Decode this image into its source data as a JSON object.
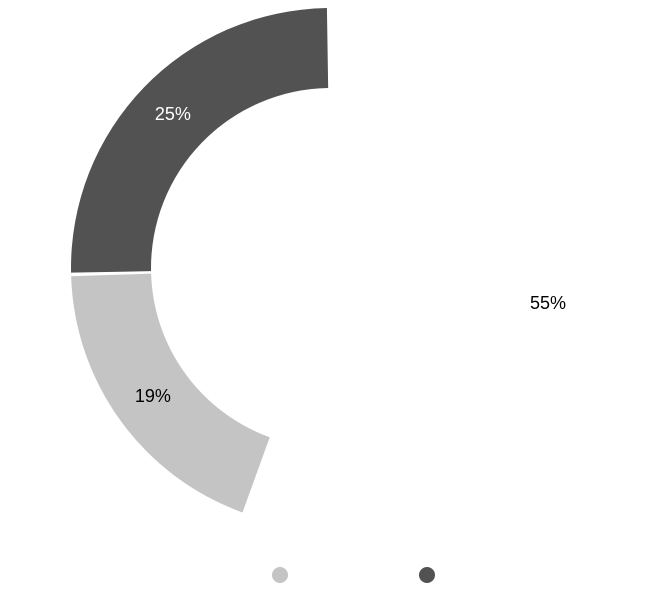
{
  "chart_data": {
    "type": "pie",
    "variant": "donut",
    "title": "",
    "slices": [
      {
        "label": "55%",
        "value": 55,
        "color": "#ffffff",
        "label_color": "#000000"
      },
      {
        "label": "19%",
        "value": 19,
        "color": "#c4c4c4",
        "label_color": "#000000"
      },
      {
        "label": "25%",
        "value": 25,
        "color": "#525252",
        "label_color": "#ffffff"
      }
    ],
    "legend": {
      "placement": "bottom",
      "entries": [
        {
          "name": "",
          "color": "#c4c4c4"
        },
        {
          "name": "",
          "color": "#525252"
        }
      ]
    }
  }
}
